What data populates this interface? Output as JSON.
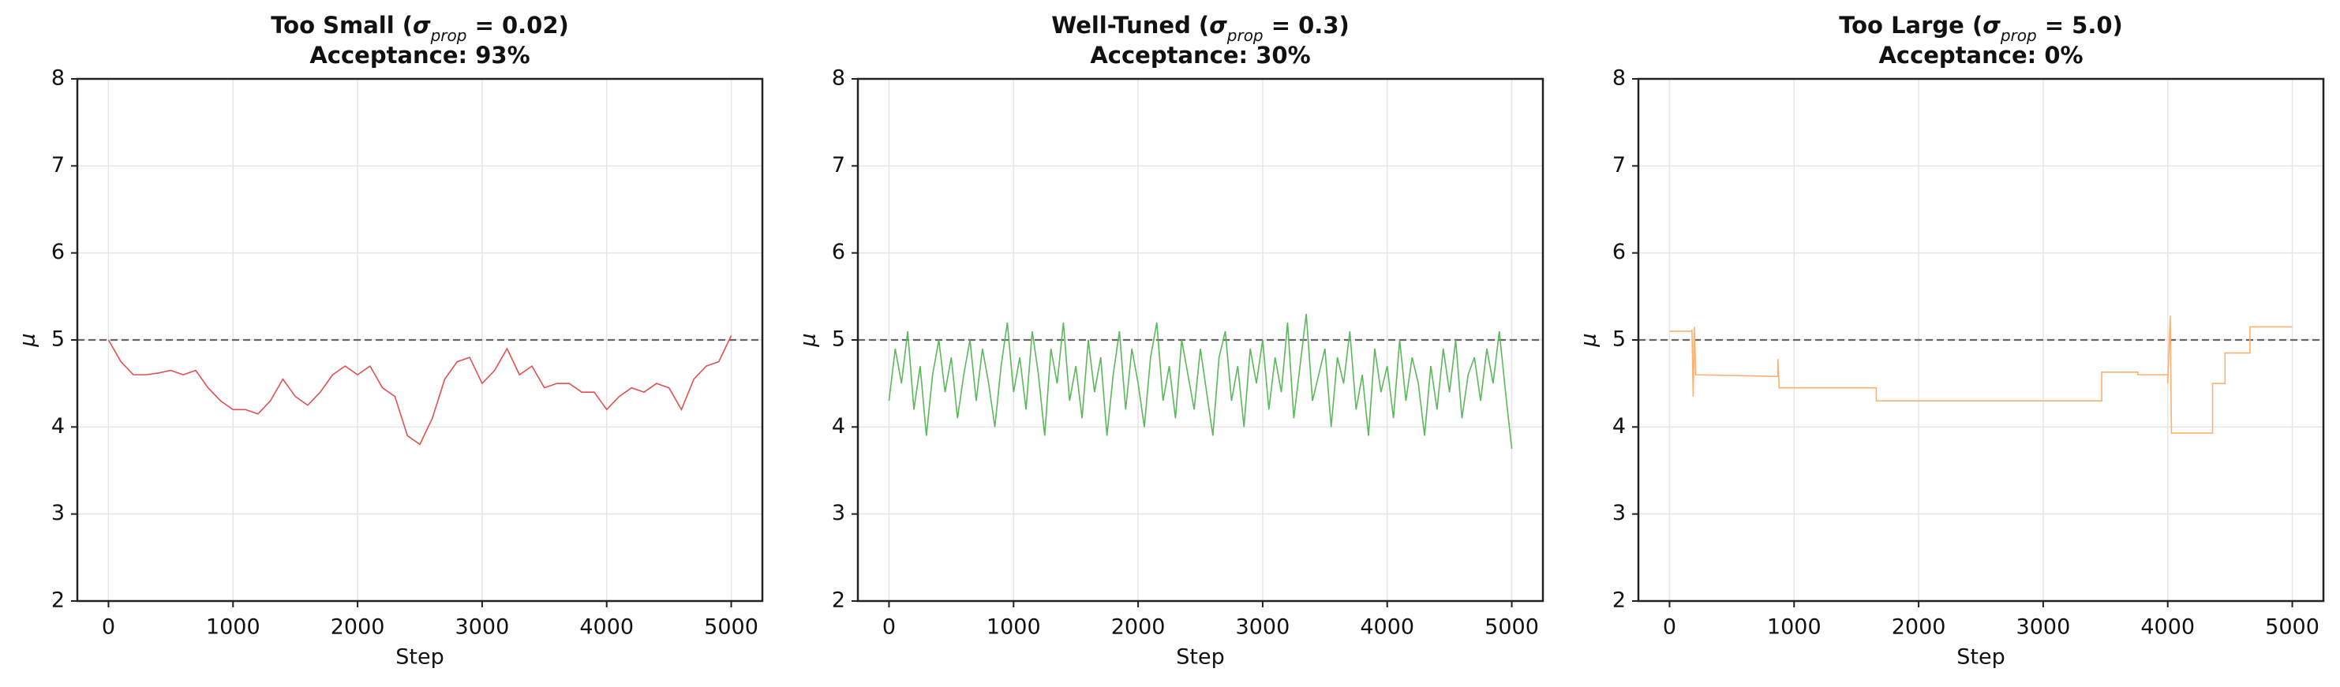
{
  "chart_data": [
    {
      "type": "line",
      "title": [
        "Too Small (",
        "σ",
        "prop",
        " = 0.02)"
      ],
      "subtitle": "Acceptance: 93%",
      "x_label": "Step",
      "y_label": "μ",
      "color": "#e05252",
      "reference_line": 5,
      "grid": true,
      "xlim": [
        -250,
        5250
      ],
      "ylim": [
        2,
        8
      ],
      "xticks": [
        0,
        1000,
        2000,
        3000,
        4000,
        5000
      ],
      "yticks": [
        2,
        3,
        4,
        5,
        6,
        7,
        8
      ],
      "x": [
        0,
        100,
        200,
        300,
        400,
        500,
        600,
        700,
        800,
        900,
        1000,
        1100,
        1200,
        1300,
        1400,
        1500,
        1600,
        1700,
        1800,
        1900,
        2000,
        2100,
        2200,
        2300,
        2400,
        2500,
        2600,
        2700,
        2800,
        2900,
        3000,
        3100,
        3200,
        3300,
        3400,
        3500,
        3600,
        3700,
        3800,
        3900,
        4000,
        4100,
        4200,
        4300,
        4400,
        4500,
        4600,
        4700,
        4800,
        4900,
        5000
      ],
      "values": [
        5.0,
        4.75,
        4.6,
        4.6,
        4.62,
        4.65,
        4.6,
        4.65,
        4.45,
        4.3,
        4.2,
        4.2,
        4.15,
        4.3,
        4.55,
        4.35,
        4.25,
        4.4,
        4.6,
        4.7,
        4.6,
        4.7,
        4.45,
        4.35,
        3.9,
        3.8,
        4.1,
        4.55,
        4.75,
        4.8,
        4.5,
        4.65,
        4.9,
        4.6,
        4.7,
        4.45,
        4.5,
        4.5,
        4.4,
        4.4,
        4.2,
        4.35,
        4.45,
        4.4,
        4.5,
        4.45,
        4.2,
        4.55,
        4.7,
        4.75,
        5.05
      ]
    },
    {
      "type": "line",
      "title": [
        "Well-Tuned (",
        "σ",
        "prop",
        " = 0.3)"
      ],
      "subtitle": "Acceptance: 30%",
      "x_label": "Step",
      "y_label": "μ",
      "color": "#5cb85c",
      "reference_line": 5,
      "grid": true,
      "xlim": [
        -250,
        5250
      ],
      "ylim": [
        2,
        8
      ],
      "xticks": [
        0,
        1000,
        2000,
        3000,
        4000,
        5000
      ],
      "yticks": [
        2,
        3,
        4,
        5,
        6,
        7,
        8
      ],
      "x": [
        0,
        50,
        100,
        150,
        200,
        250,
        300,
        350,
        400,
        450,
        500,
        550,
        600,
        650,
        700,
        750,
        800,
        850,
        900,
        950,
        1000,
        1050,
        1100,
        1150,
        1200,
        1250,
        1300,
        1350,
        1400,
        1450,
        1500,
        1550,
        1600,
        1650,
        1700,
        1750,
        1800,
        1850,
        1900,
        1950,
        2000,
        2050,
        2100,
        2150,
        2200,
        2250,
        2300,
        2350,
        2400,
        2450,
        2500,
        2550,
        2600,
        2650,
        2700,
        2750,
        2800,
        2850,
        2900,
        2950,
        3000,
        3050,
        3100,
        3150,
        3200,
        3250,
        3300,
        3350,
        3400,
        3450,
        3500,
        3550,
        3600,
        3650,
        3700,
        3750,
        3800,
        3850,
        3900,
        3950,
        4000,
        4050,
        4100,
        4150,
        4200,
        4250,
        4300,
        4350,
        4400,
        4450,
        4500,
        4550,
        4600,
        4650,
        4700,
        4750,
        4800,
        4850,
        4900,
        4950,
        5000
      ],
      "values": [
        4.3,
        4.9,
        4.5,
        5.1,
        4.2,
        4.7,
        3.9,
        4.6,
        5.0,
        4.4,
        4.8,
        4.1,
        4.6,
        5.0,
        4.3,
        4.9,
        4.5,
        4.0,
        4.7,
        5.2,
        4.4,
        4.8,
        4.2,
        5.1,
        4.6,
        3.9,
        4.9,
        4.5,
        5.2,
        4.3,
        4.7,
        4.1,
        5.0,
        4.4,
        4.8,
        3.9,
        4.6,
        5.1,
        4.2,
        4.9,
        4.5,
        4.0,
        4.8,
        5.2,
        4.3,
        4.7,
        4.1,
        5.0,
        4.6,
        4.2,
        4.9,
        4.4,
        3.9,
        4.8,
        5.1,
        4.3,
        4.7,
        4.0,
        4.9,
        4.5,
        5.0,
        4.2,
        4.8,
        4.4,
        5.2,
        4.1,
        4.7,
        5.3,
        4.3,
        4.6,
        4.9,
        4.0,
        4.8,
        4.5,
        5.1,
        4.2,
        4.6,
        3.9,
        4.9,
        4.4,
        4.7,
        4.1,
        5.0,
        4.3,
        4.8,
        4.5,
        3.9,
        4.7,
        4.2,
        4.9,
        4.4,
        5.0,
        4.1,
        4.6,
        4.8,
        4.3,
        4.9,
        4.5,
        5.1,
        4.4,
        3.75
      ]
    },
    {
      "type": "line",
      "title": [
        "Too Large (",
        "σ",
        "prop",
        " = 5.0)"
      ],
      "subtitle": "Acceptance: 0%",
      "x_label": "Step",
      "y_label": "μ",
      "color": "#ffb070",
      "reference_line": 5,
      "grid": true,
      "xlim": [
        -250,
        5250
      ],
      "ylim": [
        2,
        8
      ],
      "xticks": [
        0,
        1000,
        2000,
        3000,
        4000,
        5000
      ],
      "yticks": [
        2,
        3,
        4,
        5,
        6,
        7,
        8
      ],
      "x": [
        0,
        180,
        180,
        190,
        200,
        210,
        870,
        870,
        880,
        1660,
        1660,
        3470,
        3470,
        3760,
        3760,
        4000,
        4000,
        4020,
        4030,
        4360,
        4360,
        4460,
        4460,
        4660,
        4660,
        5000
      ],
      "values": [
        5.1,
        5.1,
        5.12,
        4.35,
        5.15,
        4.6,
        4.58,
        4.78,
        4.45,
        4.45,
        4.3,
        4.3,
        4.63,
        4.63,
        4.6,
        4.6,
        4.5,
        5.28,
        3.93,
        3.93,
        4.5,
        4.5,
        4.85,
        4.85,
        5.15,
        5.15
      ]
    }
  ]
}
